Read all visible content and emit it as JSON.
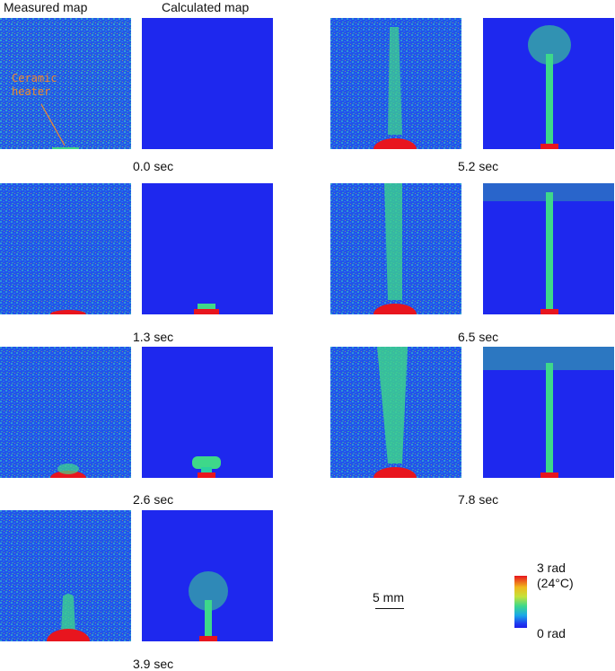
{
  "headers": {
    "measured": "Measured map",
    "calculated": "Calculated map"
  },
  "annotation": {
    "line1": "Ceramic",
    "line2": "heater"
  },
  "times": [
    "0.0 sec",
    "1.3 sec",
    "2.6 sec",
    "3.9 sec",
    "5.2 sec",
    "6.5 sec",
    "7.8 sec"
  ],
  "scale_bar": {
    "label": "5 mm"
  },
  "colorbar": {
    "max_label": "3 rad",
    "max_note": "(24°C)",
    "min_label": "0 rad",
    "colors": [
      "#e8151e",
      "#f0b81c",
      "#c4e23a",
      "#3ed88a",
      "#19a8e8",
      "#1f3bf0"
    ]
  },
  "colors": {
    "background_blue": "#1e28ee",
    "hot_red": "#e8151e",
    "plume_green": "#3ed88a"
  }
}
